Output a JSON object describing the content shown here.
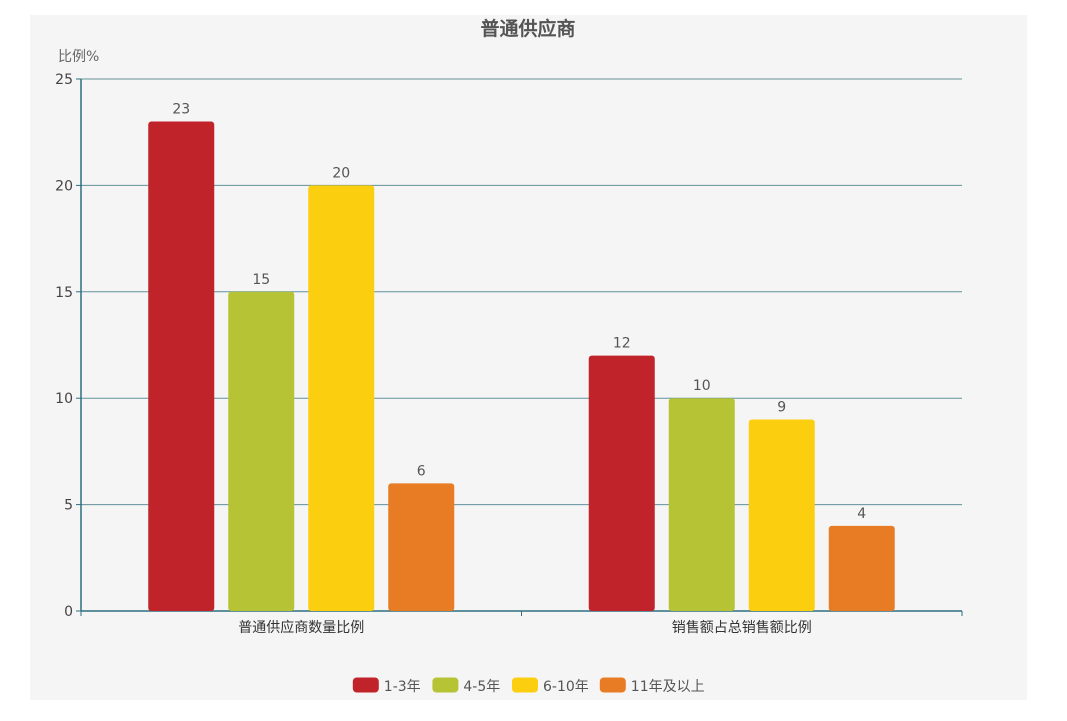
{
  "chart_data": {
    "type": "bar",
    "title": "普通供应商",
    "ylabel": "比例%",
    "ylim": [
      0,
      25
    ],
    "yticks": [
      0,
      5,
      10,
      15,
      20,
      25
    ],
    "categories": [
      "普通供应商数量比例",
      "销售额占总销售额比例"
    ],
    "series": [
      {
        "name": "1-3年",
        "color": "#c1232b",
        "values": [
          23,
          12
        ]
      },
      {
        "name": "4-5年",
        "color": "#b5c334",
        "values": [
          15,
          10
        ]
      },
      {
        "name": "6-10年",
        "color": "#fcce10",
        "values": [
          20,
          9
        ]
      },
      {
        "name": "11年及以上",
        "color": "#e87c25",
        "values": [
          6,
          4
        ]
      }
    ],
    "grid": true,
    "legend_position": "bottom-center",
    "axis_color": "#2f6f7e"
  }
}
